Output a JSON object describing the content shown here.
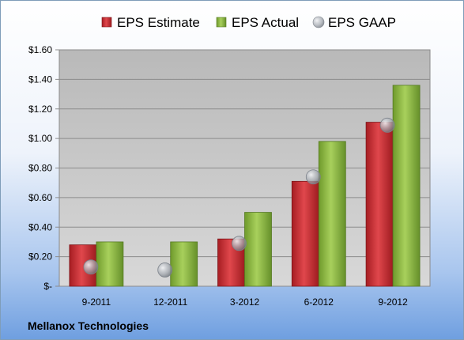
{
  "chart_data": {
    "type": "bar",
    "categories": [
      "9-2011",
      "12-2011",
      "3-2012",
      "6-2012",
      "9-2012"
    ],
    "series": [
      {
        "name": "EPS Estimate",
        "kind": "bar",
        "color": "#c0272d",
        "values": [
          0.28,
          null,
          0.32,
          0.71,
          1.11
        ]
      },
      {
        "name": "EPS Actual",
        "kind": "bar",
        "color": "#8cb340",
        "values": [
          0.3,
          0.3,
          0.5,
          0.98,
          1.36
        ]
      },
      {
        "name": "EPS GAAP",
        "kind": "marker",
        "color": "#a8adb4",
        "values": [
          0.13,
          0.11,
          0.29,
          0.74,
          1.09
        ]
      }
    ],
    "yticks": [
      {
        "value": 0,
        "label": "$-"
      },
      {
        "value": 0.2,
        "label": "$0.20"
      },
      {
        "value": 0.4,
        "label": "$0.40"
      },
      {
        "value": 0.6,
        "label": "$0.60"
      },
      {
        "value": 0.8,
        "label": "$0.80"
      },
      {
        "value": 1.0,
        "label": "$1.00"
      },
      {
        "value": 1.2,
        "label": "$1.20"
      },
      {
        "value": 1.4,
        "label": "$1.40"
      },
      {
        "value": 1.6,
        "label": "$1.60"
      }
    ],
    "ylim": [
      0,
      1.6
    ],
    "grid": true,
    "legend_position": "top",
    "title": "",
    "xlabel": "",
    "ylabel": ""
  },
  "company_name": "Mellanox Technologies"
}
